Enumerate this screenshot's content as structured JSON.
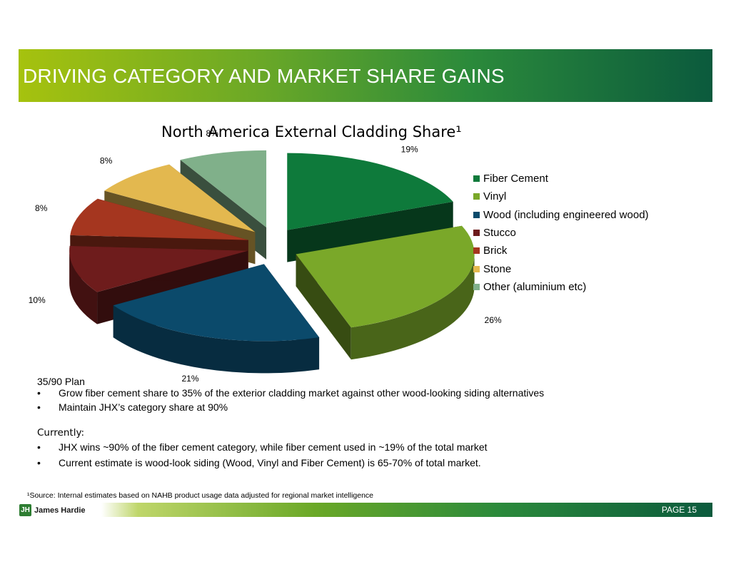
{
  "header": {
    "title": "DRIVING CATEGORY AND MARKET SHARE GAINS"
  },
  "chart_data": {
    "type": "pie",
    "title": "North America External Cladding Share¹",
    "categories": [
      "Fiber Cement",
      "Vinyl",
      "Wood (including engineered wood)",
      "Stucco",
      "Brick",
      "Stone",
      "Other (aluminium etc)"
    ],
    "values": [
      19,
      26,
      21,
      10,
      8,
      8,
      8
    ],
    "data_labels": [
      "19%",
      "26%",
      "21%",
      "10%",
      "8%",
      "8%",
      "8%"
    ],
    "colors": [
      "#0e7a3b",
      "#7aa829",
      "#0b4a6b",
      "#6e1c1c",
      "#a5361f",
      "#e3b84f",
      "#80b08a"
    ],
    "legend_position": "right",
    "exploded": true,
    "style": "3d"
  },
  "plan": {
    "heading": "35/90 Plan",
    "bullets": [
      "Grow fiber cement share to 35% of the exterior cladding market against other wood-looking siding alternatives",
      "Maintain JHX’s category share at 90%"
    ],
    "bullet_char": "•"
  },
  "currently": {
    "heading": "Currently:",
    "bullets": [
      "JHX wins ~90% of the fiber cement category, while fiber cement used in ~19% of the total market",
      "Current estimate is wood-look siding (Wood, Vinyl and Fiber Cement) is 65-70% of total market."
    ],
    "bullet_char": "•"
  },
  "footnote": "¹Source: Internal estimates based on NAHB product usage data adjusted for regional market intelligence",
  "footer": {
    "logo_text": "James Hardie",
    "page_label": "PAGE  15"
  }
}
